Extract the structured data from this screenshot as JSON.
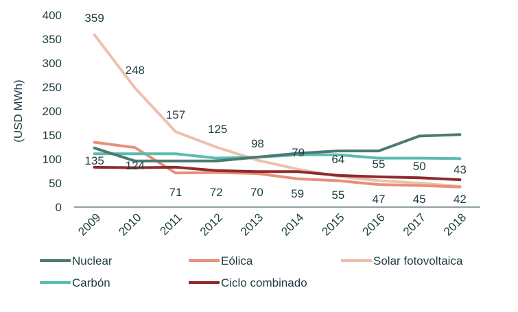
{
  "chart_data": {
    "type": "line",
    "ylabel": "(USD MWh)",
    "ylim": [
      0,
      400
    ],
    "yticks": [
      0,
      50,
      100,
      150,
      200,
      250,
      300,
      350,
      400
    ],
    "categories": [
      "2009",
      "2010",
      "2011",
      "2012",
      "2013",
      "2014",
      "2015",
      "2016",
      "2017",
      "2018"
    ],
    "series": [
      {
        "name": "Nuclear",
        "color": "#4a7a72",
        "values": [
          123,
          96,
          96,
          96,
          104,
          112,
          117,
          117,
          148,
          151
        ],
        "labels": []
      },
      {
        "name": "Eólica",
        "color": "#e8907a",
        "values": [
          135,
          124,
          71,
          72,
          70,
          59,
          55,
          47,
          45,
          42
        ],
        "labels": [
          "135",
          "124",
          "71",
          "72",
          "70",
          "59",
          "55",
          "47",
          "45",
          "42"
        ]
      },
      {
        "name": "Solar fotovoltaica",
        "color": "#efbfae",
        "values": [
          359,
          248,
          157,
          125,
          98,
          79,
          64,
          55,
          50,
          43
        ],
        "labels": [
          "359",
          "248",
          "157",
          "125",
          "98",
          "79",
          "64",
          "55",
          "50",
          "43"
        ]
      },
      {
        "name": "Carbón",
        "color": "#5bbcb0",
        "values": [
          111,
          111,
          111,
          102,
          104,
          109,
          109,
          102,
          102,
          101
        ],
        "labels": []
      },
      {
        "name": "Ciclo combinado",
        "color": "#8f2b2f",
        "values": [
          83,
          82,
          83,
          76,
          74,
          74,
          66,
          63,
          61,
          57
        ],
        "labels": []
      }
    ]
  }
}
